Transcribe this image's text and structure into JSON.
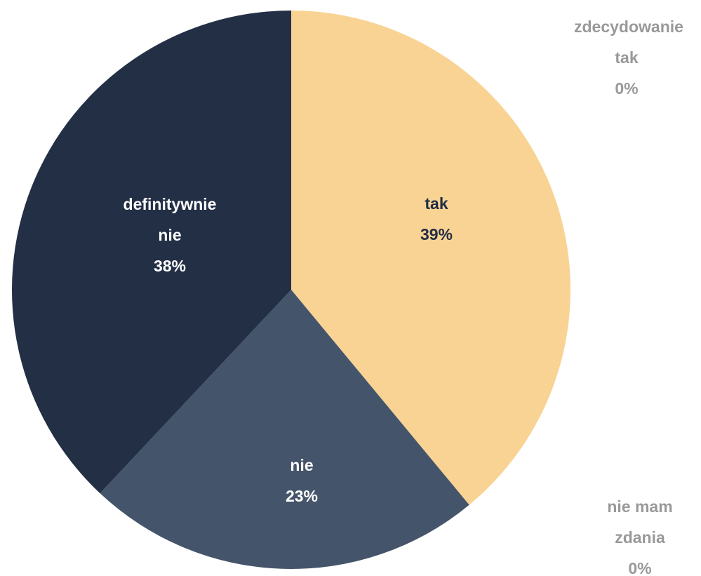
{
  "chart_data": {
    "type": "pie",
    "categories": [
      "zdecydowanie tak",
      "tak",
      "nie mam zdania",
      "nie",
      "definitywnie nie"
    ],
    "values": [
      0,
      39,
      0,
      23,
      38
    ],
    "value_labels": [
      "0%",
      "39%",
      "0%",
      "23%",
      "38%"
    ],
    "colors": [
      "#8497B0",
      "#F9D393",
      "#ADB9CA",
      "#44546A",
      "#222F45"
    ]
  }
}
